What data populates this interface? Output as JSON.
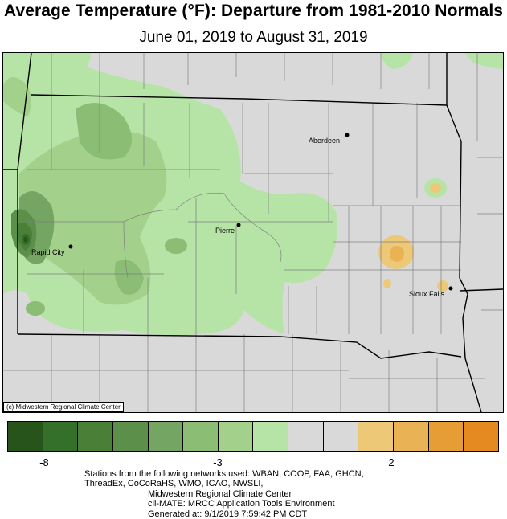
{
  "header": {
    "title": "Average Temperature (°F): Departure from 1981-2010 Normals",
    "subtitle": "June 01, 2019 to August 31, 2019"
  },
  "map": {
    "cities": [
      {
        "name": "Aberdeen"
      },
      {
        "name": "Pierre"
      },
      {
        "name": "Rapid City"
      },
      {
        "name": "Sioux Falls"
      }
    ],
    "credit": "(c) Midwestern Regional Climate Center",
    "colors": {
      "background": "#d9d9d9",
      "border": "#000000",
      "county_lines": "#7f7f7f"
    }
  },
  "legend": {
    "colors": [
      "#26541a",
      "#35702a",
      "#4a7f38",
      "#5c8f4a",
      "#75a562",
      "#8cbd74",
      "#a3d18c",
      "#b6e3a6",
      "#d9d9d9",
      "#d9d9d9",
      "#edc877",
      "#e9b355",
      "#e69d36",
      "#e48a20"
    ],
    "ticks": [
      {
        "label": "-8"
      },
      {
        "label": "-3"
      },
      {
        "label": "2"
      }
    ]
  },
  "footer": {
    "line1": "Stations from the following networks used: WBAN, COOP, FAA, GHCN,",
    "line2": "ThreadEx, CoCoRaHS, WMO, ICAO, NWSLI,",
    "line3": "Midwestern Regional Climate Center",
    "line4": "cli-MATE: MRCC Application Tools Environment",
    "line5": "Generated at: 9/1/2019 7:59:42 PM CDT"
  }
}
